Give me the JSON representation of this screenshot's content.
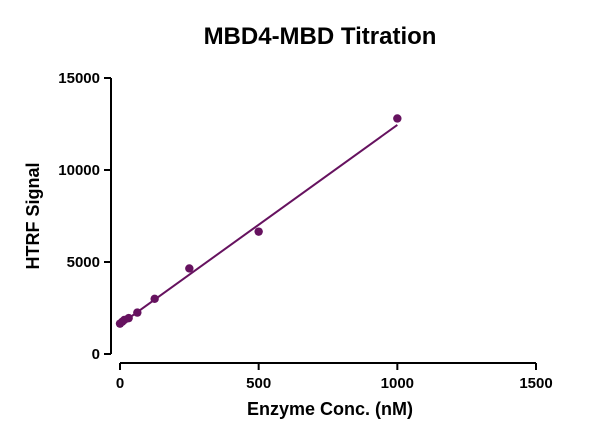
{
  "colors": {
    "series": "#66125f",
    "axis": "#000000",
    "background": "#ffffff"
  },
  "chart_data": {
    "type": "scatter",
    "title": "MBD4-MBD Titration",
    "xlabel": "Enzyme Conc. (nM)",
    "ylabel": "HTRF Signal",
    "xlim": [
      0,
      1500
    ],
    "ylim": [
      0,
      15000
    ],
    "x_ticks": [
      0,
      500,
      1000,
      1500
    ],
    "y_ticks": [
      0,
      5000,
      10000,
      15000
    ],
    "x_tick_labels": [
      "0",
      "500",
      "1000",
      "1500"
    ],
    "y_tick_labels": [
      "0",
      "5000",
      "10000",
      "15000"
    ],
    "grid": false,
    "series": [
      {
        "name": "MBD4-MBD",
        "x": [
          0,
          7.8,
          15.6,
          31.25,
          62.5,
          125,
          250,
          500,
          1000
        ],
        "y": [
          1650,
          1750,
          1850,
          1950,
          2250,
          3000,
          4650,
          6650,
          12800
        ],
        "fit": {
          "type": "linear",
          "x": [
            0,
            1000
          ],
          "y": [
            1600,
            12450
          ]
        }
      }
    ]
  }
}
